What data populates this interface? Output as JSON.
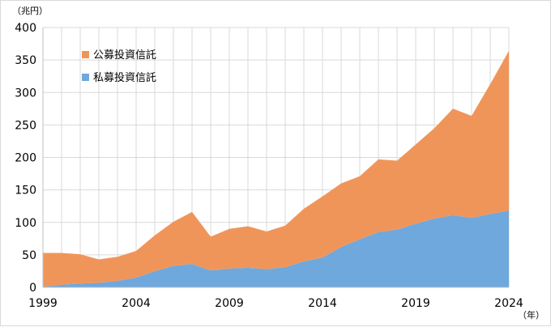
{
  "chart_data": {
    "type": "area",
    "stacked": true,
    "y_unit": "（兆円）",
    "x_unit": "（年）",
    "ylim": [
      0,
      400
    ],
    "y_ticks": [
      0,
      50,
      100,
      150,
      200,
      250,
      300,
      350,
      400
    ],
    "xlim": [
      1999,
      2024
    ],
    "x_ticks": [
      1999,
      2004,
      2009,
      2014,
      2019,
      2024
    ],
    "grid": "vertical and horizontal",
    "legend_position": "upper-left inside plot",
    "legend_order": [
      "公募投資信託",
      "私募投資信託"
    ],
    "x": [
      1999,
      2000,
      2001,
      2002,
      2003,
      2004,
      2005,
      2006,
      2007,
      2008,
      2009,
      2010,
      2011,
      2012,
      2013,
      2014,
      2015,
      2016,
      2017,
      2018,
      2019,
      2020,
      2021,
      2022,
      2023,
      2024
    ],
    "series": [
      {
        "name": "私募投資信託",
        "color": "#6fa8dc",
        "values": [
          1,
          4,
          6,
          7,
          10,
          15,
          25,
          33,
          36,
          26,
          29,
          30,
          28,
          31,
          40,
          46,
          62,
          74,
          85,
          89,
          98,
          106,
          111,
          107,
          113,
          118
        ]
      },
      {
        "name": "公募投資信託",
        "color": "#f0955a",
        "values": [
          52,
          49,
          45,
          36,
          37,
          41,
          55,
          68,
          80,
          52,
          61,
          64,
          58,
          64,
          81,
          94,
          98,
          97,
          112,
          106,
          122,
          139,
          164,
          157,
          200,
          246
        ]
      }
    ]
  }
}
